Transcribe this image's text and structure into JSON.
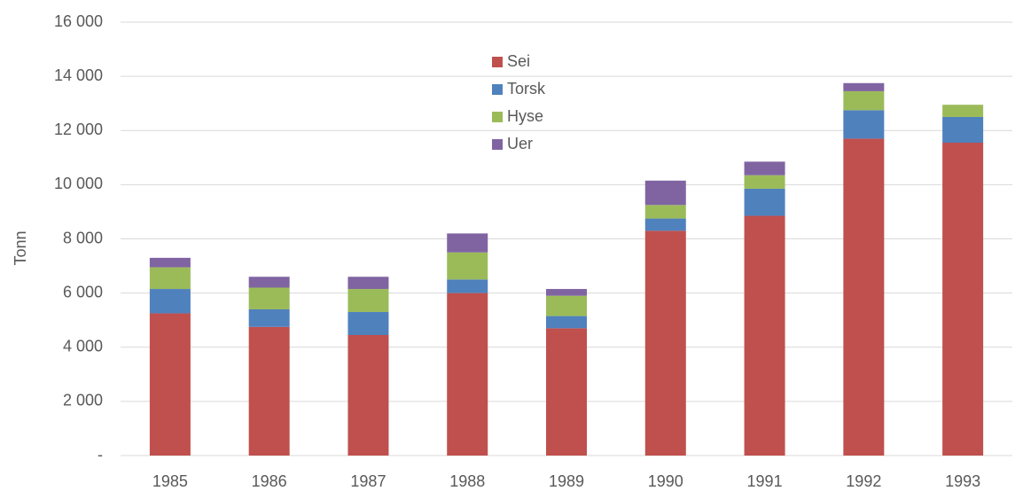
{
  "chart_data": {
    "type": "stacked_bar",
    "ylabel": "Tonn",
    "categories": [
      "1985",
      "1986",
      "1987",
      "1988",
      "1989",
      "1990",
      "1991",
      "1992",
      "1993"
    ],
    "series": [
      {
        "name": "Sei",
        "color": "#c0504d",
        "values": [
          5250,
          4750,
          4450,
          6000,
          4700,
          8300,
          8850,
          11700,
          11550
        ]
      },
      {
        "name": "Torsk",
        "color": "#4f81bd",
        "values": [
          900,
          650,
          850,
          500,
          450,
          450,
          1000,
          1050,
          950
        ]
      },
      {
        "name": "Hyse",
        "color": "#9bbb59",
        "values": [
          800,
          800,
          850,
          1000,
          750,
          500,
          500,
          700,
          450
        ]
      },
      {
        "name": "Uer",
        "color": "#8064a2",
        "values": [
          350,
          400,
          450,
          700,
          250,
          900,
          500,
          300,
          0
        ]
      }
    ],
    "ylim": [
      0,
      16000
    ],
    "yticks": [
      {
        "value": 0,
        "label": "-"
      },
      {
        "value": 2000,
        "label": "2 000"
      },
      {
        "value": 4000,
        "label": "4 000"
      },
      {
        "value": 6000,
        "label": "6 000"
      },
      {
        "value": 8000,
        "label": "8 000"
      },
      {
        "value": 10000,
        "label": "10 000"
      },
      {
        "value": 12000,
        "label": "12 000"
      },
      {
        "value": 14000,
        "label": "14 000"
      },
      {
        "value": 16000,
        "label": "16 000"
      }
    ],
    "grid": true
  }
}
